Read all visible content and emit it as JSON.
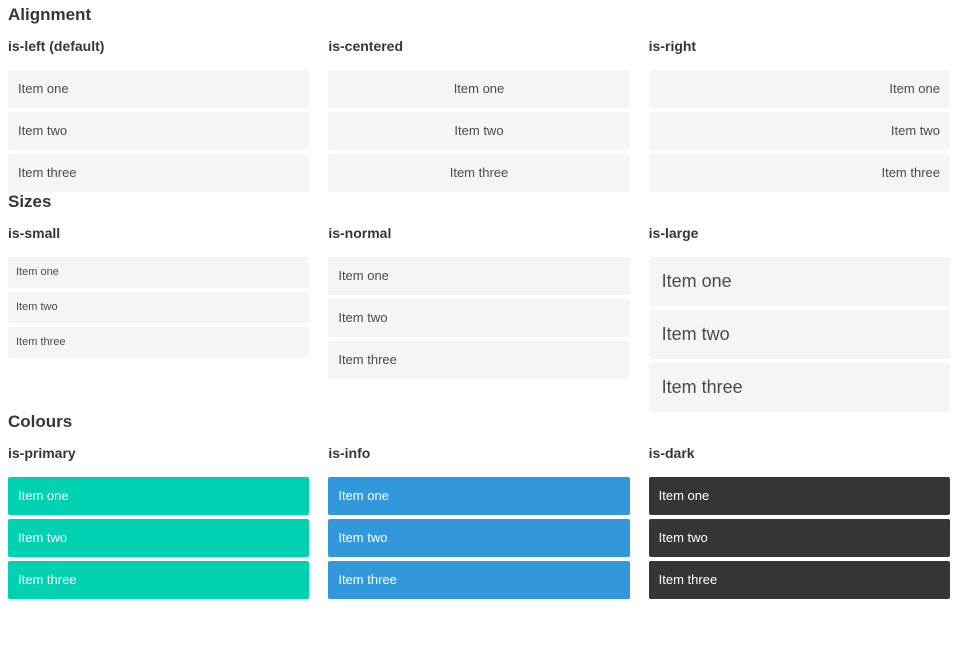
{
  "sections": [
    {
      "title": "Alignment",
      "columns": [
        {
          "label": "is-left (default)",
          "items": [
            "Item one",
            "Item two",
            "Item three"
          ]
        },
        {
          "label": "is-centered",
          "items": [
            "Item one",
            "Item two",
            "Item three"
          ]
        },
        {
          "label": "is-right",
          "items": [
            "Item one",
            "Item two",
            "Item three"
          ]
        }
      ]
    },
    {
      "title": "Sizes",
      "columns": [
        {
          "label": "is-small",
          "items": [
            "Item one",
            "Item two",
            "Item three"
          ]
        },
        {
          "label": "is-normal",
          "items": [
            "Item one",
            "Item two",
            "Item three"
          ]
        },
        {
          "label": "is-large",
          "items": [
            "Item one",
            "Item two",
            "Item three"
          ]
        }
      ]
    },
    {
      "title": "Colours",
      "columns": [
        {
          "label": "is-primary",
          "items": [
            "Item one",
            "Item two",
            "Item three"
          ]
        },
        {
          "label": "is-info",
          "items": [
            "Item one",
            "Item two",
            "Item three"
          ]
        },
        {
          "label": "is-dark",
          "items": [
            "Item one",
            "Item two",
            "Item three"
          ]
        }
      ]
    }
  ],
  "colors": {
    "primary": "#00d1b2",
    "info": "#3298dc",
    "dark": "#363636",
    "item_background": "#f5f5f5",
    "heading_text": "#363636",
    "item_text": "#4a4a4a",
    "colored_item_text": "#ffffff"
  }
}
